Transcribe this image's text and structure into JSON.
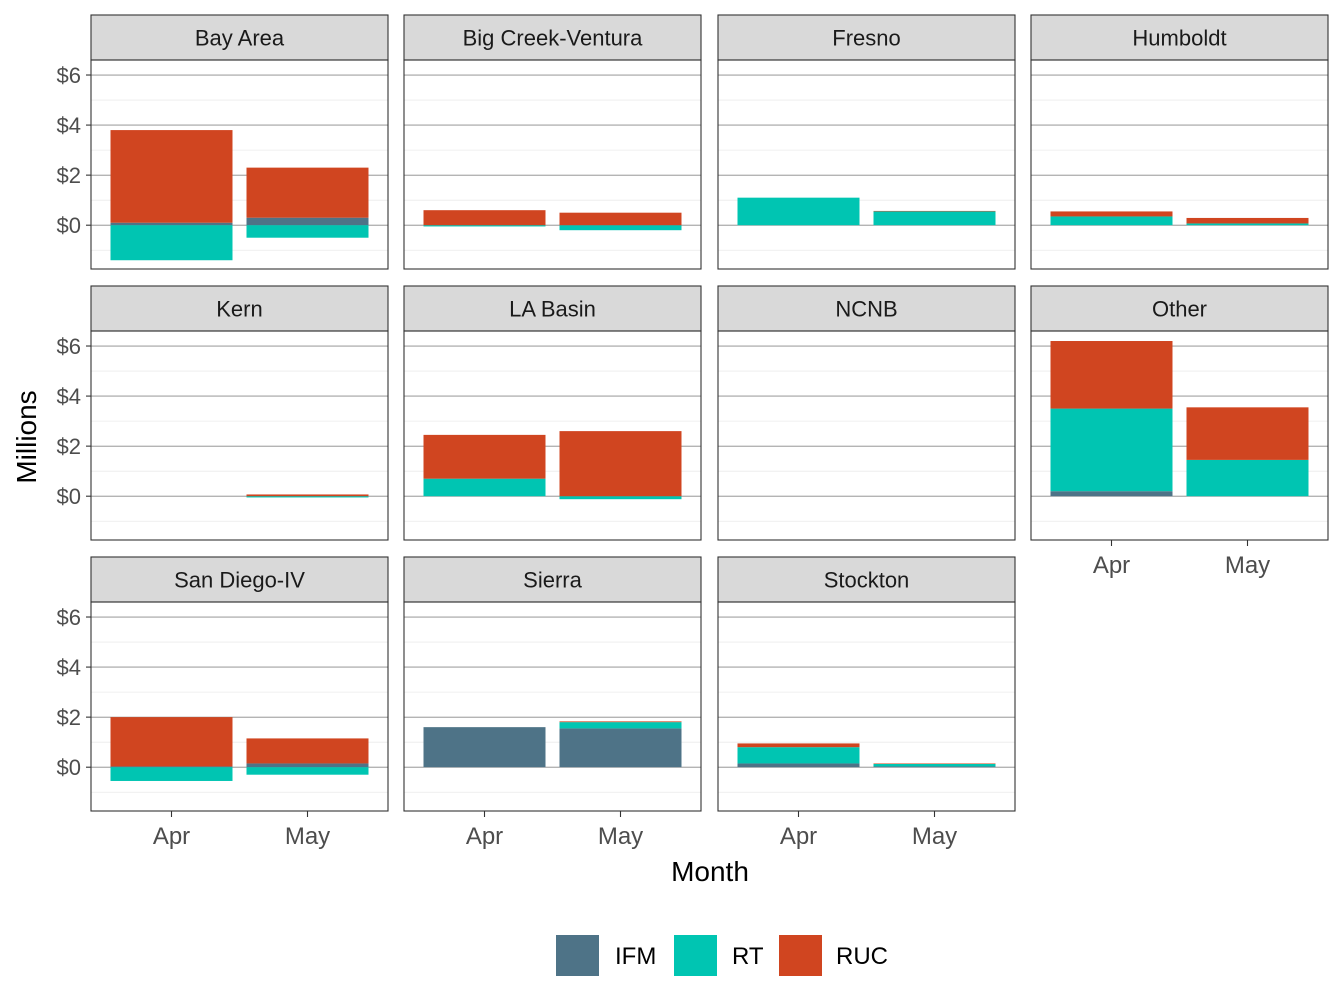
{
  "chart_data": {
    "type": "bar",
    "stacked": true,
    "facet": true,
    "xlabel": "Month",
    "ylabel": "Millions",
    "categories": [
      "Apr",
      "May"
    ],
    "ylim": [
      -1.75,
      6.6
    ],
    "y_ticks": [
      0,
      2,
      4,
      6
    ],
    "y_tick_labels": [
      "$0",
      "$2",
      "$4",
      "$6"
    ],
    "grid": true,
    "legend_position": "bottom",
    "legend": [
      {
        "name": "IFM",
        "color": "#4e7387"
      },
      {
        "name": "RT",
        "color": "#00c5b2"
      },
      {
        "name": "RUC",
        "color": "#d04520"
      }
    ],
    "panels": [
      {
        "title": "Bay Area",
        "series": [
          {
            "name": "IFM",
            "values": [
              0.1,
              0.3
            ]
          },
          {
            "name": "RT",
            "values": [
              -1.4,
              -0.5
            ]
          },
          {
            "name": "RUC",
            "values": [
              3.7,
              2.0
            ]
          }
        ]
      },
      {
        "title": "Big Creek-Ventura",
        "series": [
          {
            "name": "IFM",
            "values": [
              0.0,
              0.0
            ]
          },
          {
            "name": "RT",
            "values": [
              -0.05,
              -0.2
            ]
          },
          {
            "name": "RUC",
            "values": [
              0.6,
              0.5
            ]
          }
        ]
      },
      {
        "title": "Fresno",
        "series": [
          {
            "name": "IFM",
            "values": [
              0.0,
              0.0
            ]
          },
          {
            "name": "RT",
            "values": [
              1.1,
              0.55
            ]
          },
          {
            "name": "RUC",
            "values": [
              0.0,
              0.02
            ]
          }
        ]
      },
      {
        "title": "Humboldt",
        "series": [
          {
            "name": "IFM",
            "values": [
              0.0,
              0.0
            ]
          },
          {
            "name": "RT",
            "values": [
              0.35,
              0.07
            ]
          },
          {
            "name": "RUC",
            "values": [
              0.2,
              0.22
            ]
          }
        ]
      },
      {
        "title": "Kern",
        "series": [
          {
            "name": "IFM",
            "values": [
              0.0,
              0.0
            ]
          },
          {
            "name": "RT",
            "values": [
              0.0,
              -0.05
            ]
          },
          {
            "name": "RUC",
            "values": [
              0.0,
              0.07
            ]
          }
        ]
      },
      {
        "title": "LA Basin",
        "series": [
          {
            "name": "IFM",
            "values": [
              0.0,
              0.0
            ]
          },
          {
            "name": "RT",
            "values": [
              0.7,
              -0.12
            ]
          },
          {
            "name": "RUC",
            "values": [
              1.75,
              2.6
            ]
          }
        ]
      },
      {
        "title": "NCNB",
        "series": [
          {
            "name": "IFM",
            "values": [
              0.0,
              0.0
            ]
          },
          {
            "name": "RT",
            "values": [
              0.0,
              0.0
            ]
          },
          {
            "name": "RUC",
            "values": [
              0.0,
              0.0
            ]
          }
        ]
      },
      {
        "title": "Other",
        "series": [
          {
            "name": "IFM",
            "values": [
              0.2,
              0.0
            ]
          },
          {
            "name": "RT",
            "values": [
              3.3,
              1.45
            ]
          },
          {
            "name": "RUC",
            "values": [
              2.7,
              2.1
            ]
          }
        ]
      },
      {
        "title": "San Diego-IV",
        "series": [
          {
            "name": "IFM",
            "values": [
              0.03,
              0.15
            ]
          },
          {
            "name": "RT",
            "values": [
              -0.55,
              -0.3
            ]
          },
          {
            "name": "RUC",
            "values": [
              1.97,
              1.0
            ]
          }
        ]
      },
      {
        "title": "Sierra",
        "series": [
          {
            "name": "IFM",
            "values": [
              1.6,
              1.55
            ]
          },
          {
            "name": "RT",
            "values": [
              0.0,
              0.25
            ]
          },
          {
            "name": "RUC",
            "values": [
              0.0,
              0.03
            ]
          }
        ]
      },
      {
        "title": "Stockton",
        "series": [
          {
            "name": "IFM",
            "values": [
              0.15,
              0.03
            ]
          },
          {
            "name": "RT",
            "values": [
              0.65,
              0.1
            ]
          },
          {
            "name": "RUC",
            "values": [
              0.15,
              0.02
            ]
          }
        ]
      }
    ]
  }
}
